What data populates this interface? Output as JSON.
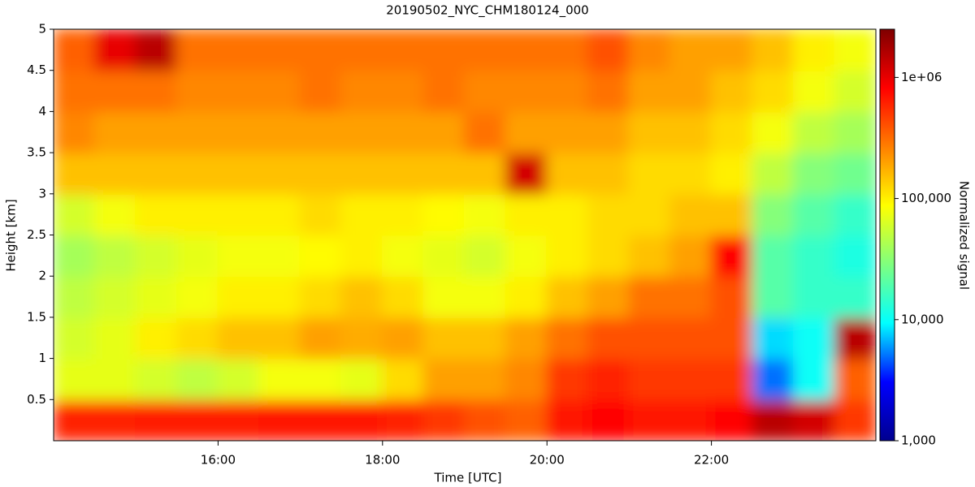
{
  "chart_data": {
    "type": "heatmap",
    "title": "20190502_NYC_CHM180124_000",
    "x_label": "Time [UTC]",
    "y_label": "Height [km]",
    "colorbar_label": "Normalized signal",
    "x": [
      14,
      14.5,
      15,
      15.5,
      16,
      16.5,
      17,
      17.5,
      18,
      18.5,
      19,
      19.5,
      20,
      20.5,
      21,
      21.5,
      22,
      22.5,
      23,
      23.5,
      24
    ],
    "y": [
      0,
      0.5,
      1,
      1.5,
      2,
      2.5,
      3,
      3.5,
      4,
      4.5,
      5
    ],
    "z": [
      [
        600000,
        600000,
        650000,
        650000,
        650000,
        700000,
        700000,
        700000,
        600000,
        500000,
        400000,
        350000,
        700000,
        800000,
        700000,
        700000,
        800000,
        1500000,
        1200000,
        500000
      ],
      [
        70000,
        70000,
        60000,
        50000,
        60000,
        80000,
        80000,
        70000,
        120000,
        200000,
        200000,
        250000,
        500000,
        600000,
        500000,
        500000,
        500000,
        5000,
        10000,
        350000
      ],
      [
        60000,
        70000,
        100000,
        120000,
        150000,
        150000,
        200000,
        180000,
        200000,
        150000,
        150000,
        200000,
        300000,
        400000,
        400000,
        400000,
        400000,
        8000,
        10000,
        1500000
      ],
      [
        50000,
        60000,
        70000,
        80000,
        100000,
        100000,
        120000,
        150000,
        120000,
        80000,
        80000,
        100000,
        150000,
        200000,
        300000,
        300000,
        400000,
        20000,
        15000,
        15000
      ],
      [
        40000,
        50000,
        60000,
        70000,
        80000,
        80000,
        90000,
        100000,
        80000,
        70000,
        60000,
        80000,
        100000,
        120000,
        150000,
        200000,
        800000,
        20000,
        15000,
        12000
      ],
      [
        60000,
        80000,
        100000,
        100000,
        100000,
        100000,
        120000,
        100000,
        100000,
        90000,
        80000,
        100000,
        100000,
        120000,
        120000,
        150000,
        150000,
        30000,
        20000,
        15000
      ],
      [
        150000,
        150000,
        150000,
        150000,
        150000,
        150000,
        150000,
        150000,
        150000,
        150000,
        150000,
        1200000,
        150000,
        150000,
        120000,
        120000,
        100000,
        50000,
        30000,
        25000
      ],
      [
        250000,
        200000,
        200000,
        200000,
        200000,
        200000,
        200000,
        200000,
        200000,
        200000,
        300000,
        200000,
        200000,
        200000,
        150000,
        150000,
        120000,
        80000,
        50000,
        40000
      ],
      [
        300000,
        300000,
        300000,
        250000,
        250000,
        250000,
        300000,
        250000,
        250000,
        300000,
        250000,
        250000,
        250000,
        300000,
        200000,
        200000,
        150000,
        120000,
        80000,
        60000
      ],
      [
        350000,
        1000000,
        1500000,
        300000,
        300000,
        300000,
        300000,
        300000,
        300000,
        300000,
        300000,
        300000,
        300000,
        400000,
        250000,
        200000,
        200000,
        150000,
        100000,
        80000
      ]
    ],
    "xlim": [
      14,
      24
    ],
    "xticks": [
      {
        "value": 16,
        "label": "16:00"
      },
      {
        "value": 18,
        "label": "18:00"
      },
      {
        "value": 20,
        "label": "20:00"
      },
      {
        "value": 22,
        "label": "22:00"
      }
    ],
    "ylim": [
      0,
      5
    ],
    "yticks": [
      0.5,
      1,
      1.5,
      2,
      2.5,
      3,
      3.5,
      4,
      4.5,
      5
    ],
    "clim": [
      1000,
      2500000
    ],
    "color_scale": "log",
    "cticks": [
      {
        "value": 1000,
        "label": "1,000"
      },
      {
        "value": 10000,
        "label": "10,000"
      },
      {
        "value": 100000,
        "label": "100,000"
      },
      {
        "value": 1000000,
        "label": "1e+06"
      }
    ],
    "colormap": [
      "#00008f",
      "#0000ff",
      "#00ffff",
      "#7fff7f",
      "#ffff00",
      "#ff7f00",
      "#ff0000",
      "#7f0000"
    ]
  }
}
